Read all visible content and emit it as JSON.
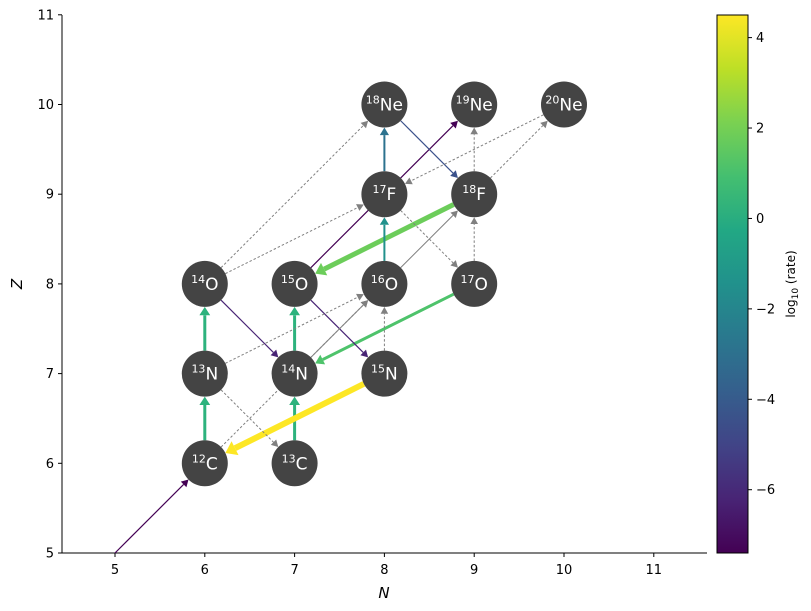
{
  "chart_data": {
    "type": "network",
    "title": "",
    "xlabel": "N",
    "ylabel": "Z",
    "xlim": [
      4.45,
      11.6
    ],
    "ylim": [
      5,
      11
    ],
    "xticks": [
      "5",
      "6",
      "7",
      "8",
      "9",
      "10",
      "11"
    ],
    "yticks": [
      "5",
      "6",
      "7",
      "8",
      "9",
      "10",
      "11"
    ],
    "grid": false,
    "colorbar": {
      "label": "log10 (rate)",
      "label_main": "log",
      "label_sub": "10",
      "label_rest": " (rate)",
      "colormap": "viridis",
      "range": [
        -7.4,
        4.5
      ],
      "ticks": [
        "4",
        "2",
        "0",
        "−2",
        "−4",
        "−6"
      ],
      "tick_values": [
        4,
        2,
        0,
        -2,
        -4,
        -6
      ]
    },
    "nodes": [
      {
        "id": "c12",
        "A": "12",
        "el": "C",
        "N": 6,
        "Z": 6
      },
      {
        "id": "c13",
        "A": "13",
        "el": "C",
        "N": 7,
        "Z": 6
      },
      {
        "id": "n13",
        "A": "13",
        "el": "N",
        "N": 6,
        "Z": 7
      },
      {
        "id": "n14",
        "A": "14",
        "el": "N",
        "N": 7,
        "Z": 7
      },
      {
        "id": "n15",
        "A": "15",
        "el": "N",
        "N": 8,
        "Z": 7
      },
      {
        "id": "o14",
        "A": "14",
        "el": "O",
        "N": 6,
        "Z": 8
      },
      {
        "id": "o15",
        "A": "15",
        "el": "O",
        "N": 7,
        "Z": 8
      },
      {
        "id": "o16",
        "A": "16",
        "el": "O",
        "N": 8,
        "Z": 8
      },
      {
        "id": "o17",
        "A": "17",
        "el": "O",
        "N": 9,
        "Z": 8
      },
      {
        "id": "f17",
        "A": "17",
        "el": "F",
        "N": 8,
        "Z": 9
      },
      {
        "id": "f18",
        "A": "18",
        "el": "F",
        "N": 9,
        "Z": 9
      },
      {
        "id": "ne18",
        "A": "18",
        "el": "Ne",
        "N": 8,
        "Z": 10
      },
      {
        "id": "ne19",
        "A": "19",
        "el": "Ne",
        "N": 9,
        "Z": 10
      },
      {
        "id": "ne20",
        "A": "20",
        "el": "Ne",
        "N": 10,
        "Z": 10
      }
    ],
    "edges": [
      {
        "from": [
          5,
          5
        ],
        "to": [
          6,
          6
        ],
        "log_rate": -7.2,
        "color": "#440154",
        "width": 1.2,
        "style": "solid"
      },
      {
        "from": [
          6,
          6
        ],
        "to": [
          6,
          7
        ],
        "log_rate": 0.7,
        "color": "#2db27d",
        "width": 3,
        "style": "solid"
      },
      {
        "from": [
          7,
          6
        ],
        "to": [
          7,
          7
        ],
        "log_rate": 0.7,
        "color": "#2db27d",
        "width": 3,
        "style": "solid"
      },
      {
        "from": [
          6,
          7
        ],
        "to": [
          6,
          8
        ],
        "log_rate": 0.7,
        "color": "#2db27d",
        "width": 3,
        "style": "solid"
      },
      {
        "from": [
          7,
          7
        ],
        "to": [
          7,
          8
        ],
        "log_rate": 0.7,
        "color": "#2db27d",
        "width": 3,
        "style": "solid"
      },
      {
        "from": [
          8,
          7
        ],
        "to": [
          6,
          6
        ],
        "log_rate": 4.3,
        "color": "#fde725",
        "width": 6,
        "style": "solid"
      },
      {
        "from": [
          9,
          8
        ],
        "to": [
          7,
          7
        ],
        "log_rate": 1.3,
        "color": "#4ec36b",
        "width": 3,
        "style": "solid"
      },
      {
        "from": [
          9,
          9
        ],
        "to": [
          7,
          8
        ],
        "log_rate": 2.0,
        "color": "#6ccd5a",
        "width": 5,
        "style": "solid"
      },
      {
        "from": [
          6,
          8
        ],
        "to": [
          7,
          7
        ],
        "log_rate": -6.3,
        "color": "#482475",
        "width": 1.2,
        "style": "solid"
      },
      {
        "from": [
          7,
          8
        ],
        "to": [
          8,
          7
        ],
        "log_rate": -6.3,
        "color": "#482475",
        "width": 1.2,
        "style": "solid"
      },
      {
        "from": [
          8,
          8
        ],
        "to": [
          8,
          9
        ],
        "log_rate": -1.4,
        "color": "#21918c",
        "width": 2,
        "style": "solid"
      },
      {
        "from": [
          8,
          9
        ],
        "to": [
          8,
          10
        ],
        "log_rate": -2.6,
        "color": "#2c728e",
        "width": 2,
        "style": "solid"
      },
      {
        "from": [
          7,
          8
        ],
        "to": [
          9,
          10
        ],
        "log_rate": -7.0,
        "color": "#440154",
        "width": 1.2,
        "style": "solid"
      },
      {
        "from": [
          8,
          10
        ],
        "to": [
          9,
          9
        ],
        "log_rate": -4.3,
        "color": "#3b528b",
        "width": 1.2,
        "style": "solid"
      },
      {
        "from": [
          7,
          7
        ],
        "to": [
          8,
          8
        ],
        "log_rate": null,
        "color": "#808080",
        "width": 1,
        "style": "solid"
      },
      {
        "from": [
          8,
          8
        ],
        "to": [
          9,
          9
        ],
        "log_rate": null,
        "color": "#808080",
        "width": 1,
        "style": "solid"
      },
      {
        "from": [
          6,
          7
        ],
        "to": [
          7,
          6
        ],
        "log_rate": null,
        "color": "#808080",
        "width": 1,
        "style": "dotted"
      },
      {
        "from": [
          6,
          6
        ],
        "to": [
          8,
          8
        ],
        "log_rate": null,
        "color": "#808080",
        "width": 1,
        "style": "dotted"
      },
      {
        "from": [
          6,
          7
        ],
        "to": [
          8,
          8
        ],
        "log_rate": null,
        "color": "#808080",
        "width": 1,
        "style": "dotted"
      },
      {
        "from": [
          8,
          7
        ],
        "to": [
          8,
          8
        ],
        "log_rate": null,
        "color": "#808080",
        "width": 1,
        "style": "dotted"
      },
      {
        "from": [
          6,
          8
        ],
        "to": [
          8,
          9
        ],
        "log_rate": null,
        "color": "#808080",
        "width": 1,
        "style": "dotted"
      },
      {
        "from": [
          6,
          8
        ],
        "to": [
          8,
          10
        ],
        "log_rate": null,
        "color": "#808080",
        "width": 1,
        "style": "dotted"
      },
      {
        "from": [
          8,
          9
        ],
        "to": [
          9,
          8
        ],
        "log_rate": null,
        "color": "#808080",
        "width": 1,
        "style": "dotted"
      },
      {
        "from": [
          9,
          8
        ],
        "to": [
          9,
          9
        ],
        "log_rate": null,
        "color": "#808080",
        "width": 1,
        "style": "dotted"
      },
      {
        "from": [
          9,
          9
        ],
        "to": [
          9,
          10
        ],
        "log_rate": null,
        "color": "#808080",
        "width": 1,
        "style": "dotted"
      },
      {
        "from": [
          9,
          9
        ],
        "to": [
          10,
          10
        ],
        "log_rate": null,
        "color": "#808080",
        "width": 1,
        "style": "dotted"
      },
      {
        "from": [
          10,
          10
        ],
        "to": [
          8,
          9
        ],
        "log_rate": null,
        "color": "#808080",
        "width": 1,
        "style": "dotted"
      }
    ]
  }
}
